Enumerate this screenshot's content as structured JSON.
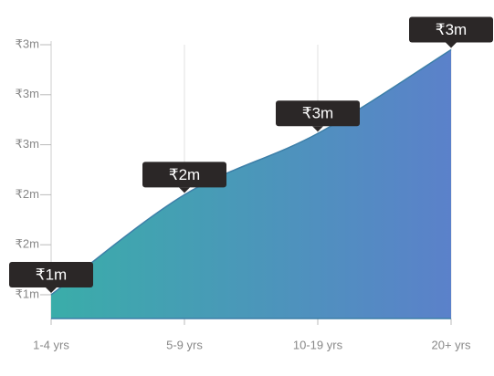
{
  "chart_data": {
    "type": "area",
    "categories": [
      "1-4 yrs",
      "5-9 yrs",
      "10-19 yrs",
      "20+ yrs"
    ],
    "values": [
      1.3,
      2.1,
      2.59,
      3.26
    ],
    "value_labels": [
      "₹1m",
      "₹2m",
      "₹3m",
      "₹3m"
    ],
    "ylim": [
      1.11,
      3.3
    ],
    "yticks": [
      {
        "value": 1.3,
        "label": "₹1m"
      },
      {
        "value": 1.7,
        "label": "₹2m"
      },
      {
        "value": 2.1,
        "label": "₹2m"
      },
      {
        "value": 2.5,
        "label": "₹3m"
      },
      {
        "value": 2.9,
        "label": "₹3m"
      },
      {
        "value": 3.3,
        "label": "₹3m"
      }
    ],
    "gradient": [
      "#3aada9",
      "#5b81ca"
    ],
    "line_color": "#3d7fa8",
    "grid": true
  }
}
